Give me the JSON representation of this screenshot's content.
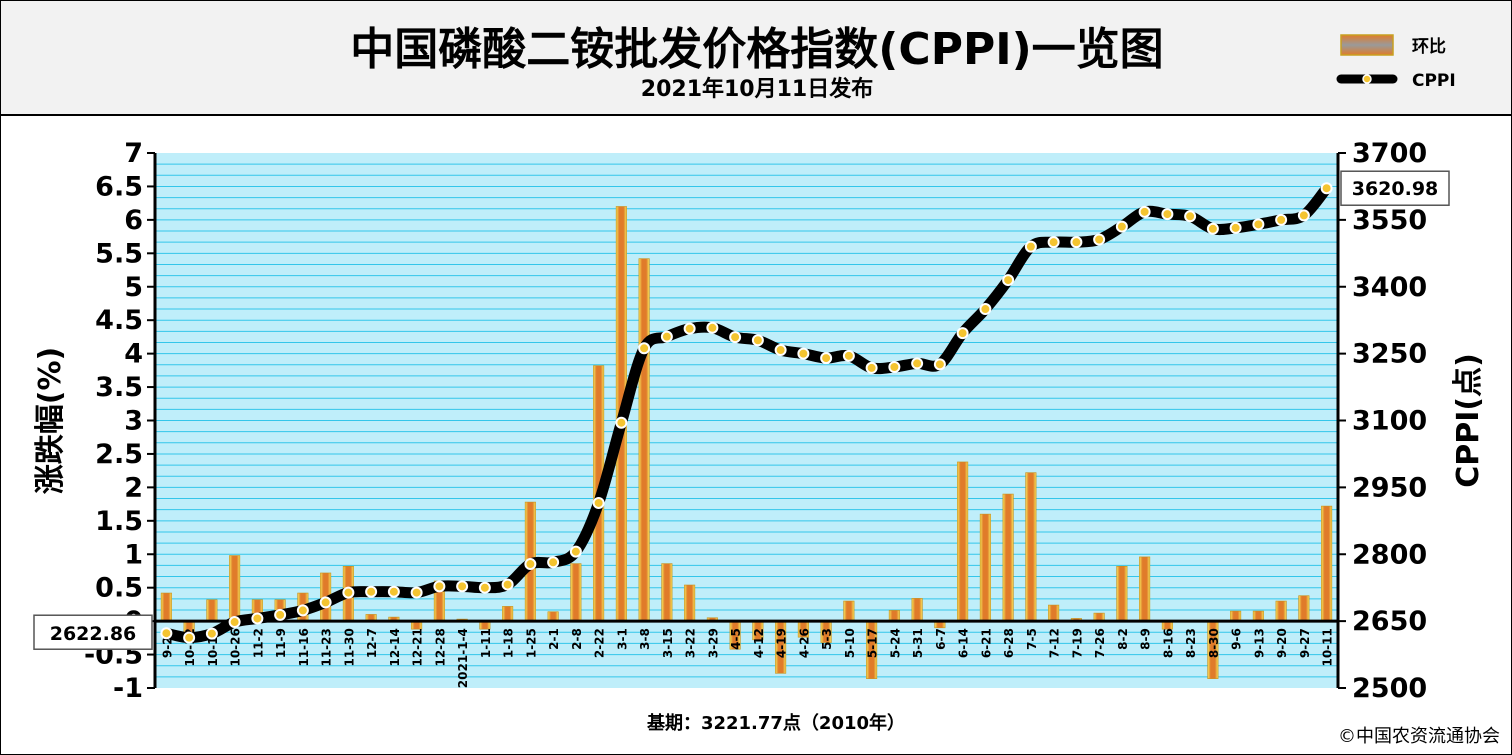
{
  "header": {
    "title": "中国磷酸二铵批发价格指数(CPPI)一览图",
    "subtitle": "2021年10月11日发布"
  },
  "legend": {
    "bar_label": "环比",
    "line_label": "CPPI"
  },
  "footer": {
    "base_period": "基期：3221.77点（2010年）",
    "copyright": "©中国农资流通协会"
  },
  "colors": {
    "plot_bg": "#bfeefa",
    "grid": "#33c6ea",
    "bar_fill": "#e07b2a",
    "bar_edge": "#f6e35a",
    "line": "#000000",
    "marker": "#f4c430"
  },
  "chart_data": {
    "type": "bar+line",
    "x": [
      "9-28",
      "10-12",
      "10-19",
      "10-26",
      "11-2",
      "11-9",
      "11-16",
      "11-23",
      "11-30",
      "12-7",
      "12-14",
      "12-21",
      "12-28",
      "2021-1-4",
      "1-11",
      "1-18",
      "1-25",
      "2-1",
      "2-8",
      "2-22",
      "3-1",
      "3-8",
      "3-15",
      "3-22",
      "3-29",
      "4-5",
      "4-12",
      "4-19",
      "4-26",
      "5-3",
      "5-10",
      "5-17",
      "5-24",
      "5-31",
      "6-7",
      "6-14",
      "6-21",
      "6-28",
      "7-5",
      "7-12",
      "7-19",
      "7-26",
      "8-2",
      "8-9",
      "8-16",
      "8-23",
      "8-30",
      "9-6",
      "9-13",
      "9-20",
      "9-27",
      "10-11"
    ],
    "series": [
      {
        "name": "环比",
        "axis": "left",
        "values": [
          0.42,
          -0.18,
          0.32,
          0.98,
          0.32,
          0.32,
          0.42,
          0.72,
          0.82,
          0.1,
          0.06,
          -0.12,
          0.6,
          0.03,
          -0.12,
          0.22,
          1.78,
          0.14,
          0.86,
          3.82,
          6.2,
          5.42,
          0.86,
          0.54,
          0.05,
          -0.42,
          -0.28,
          -0.78,
          -0.24,
          -0.32,
          0.3,
          -0.86,
          0.16,
          0.34,
          -0.1,
          2.38,
          1.6,
          1.9,
          2.22,
          0.24,
          0.04,
          0.12,
          0.82,
          0.96,
          -0.12,
          0.0,
          -0.86,
          0.15,
          0.15,
          0.3,
          0.38,
          1.72
        ]
      },
      {
        "name": "CPPI",
        "axis": "right",
        "values": [
          2622.86,
          2613,
          2622,
          2648,
          2656,
          2664,
          2674,
          2692,
          2714,
          2716,
          2716,
          2714,
          2728,
          2728,
          2725,
          2732,
          2778,
          2782,
          2806,
          2915,
          3095,
          3262,
          3288,
          3306,
          3308,
          3287,
          3280,
          3258,
          3250,
          3240,
          3245,
          3218,
          3220,
          3228,
          3226,
          3296,
          3350,
          3415,
          3490,
          3500,
          3500,
          3506,
          3535,
          3568,
          3563,
          3558,
          3530,
          3532,
          3540,
          3550,
          3560,
          3620.98
        ]
      }
    ],
    "ylabel_left": "涨跌幅(%)",
    "ylabel_right": "CPPI(点)",
    "yticks_left": [
      "7",
      "6.5",
      "6",
      "5.5",
      "5",
      "4.5",
      "4",
      "3.5",
      "3",
      "2.5",
      "2",
      "1.5",
      "1",
      "0.5",
      "0",
      "-0.5",
      "-1"
    ],
    "yticks_right": [
      "3700",
      "3550",
      "3400",
      "3250",
      "3100",
      "2950",
      "2800",
      "2650",
      "2500"
    ],
    "ylim_left": [
      -1,
      7
    ],
    "ylim_right": [
      2500,
      3700
    ],
    "start_label": "2622.86",
    "end_label": "3620.98",
    "grid": true,
    "legend_position": "top-right"
  }
}
